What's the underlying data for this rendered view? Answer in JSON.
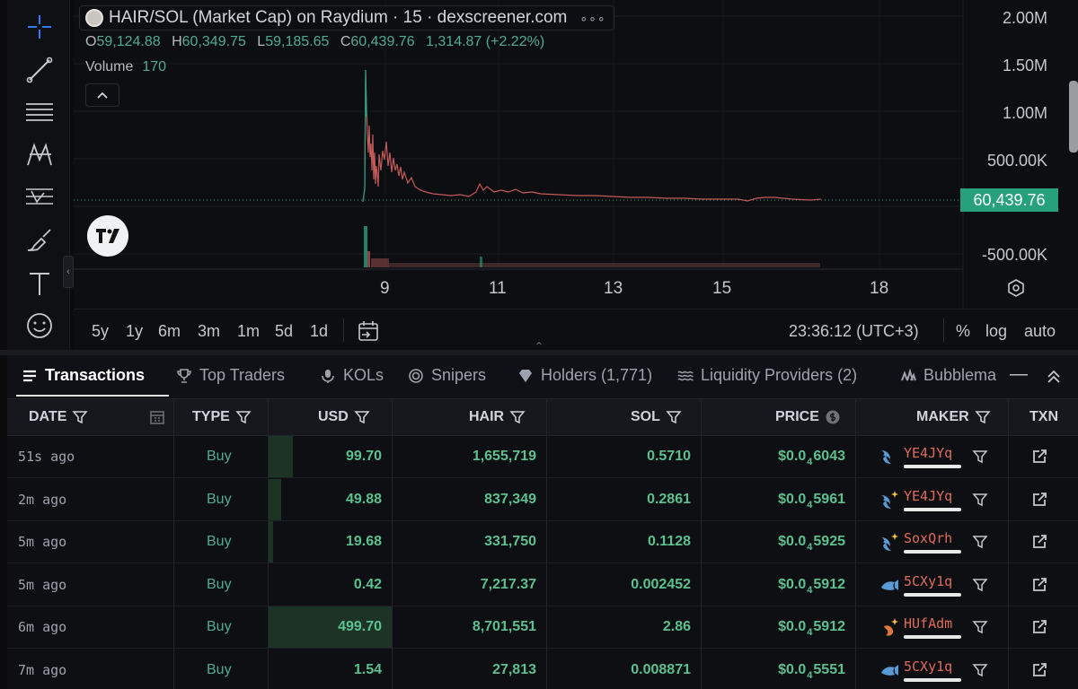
{
  "chart": {
    "pair_title": "HAIR/SOL (Market Cap) on Raydium · 15 · dexscreener.com",
    "more": "∘∘∘",
    "ohlc": {
      "o_label": "O",
      "o": "59,124.88",
      "h_label": "H",
      "h": "60,349.75",
      "l_label": "L",
      "l": "59,185.65",
      "c_label": "C",
      "c": "60,439.76",
      "change": "1,314.87 (+2.22%)"
    },
    "volume_label": "Volume",
    "volume_value": "170",
    "price_axis": [
      "2.00M",
      "1.50M",
      "1.00M",
      "500.00K",
      "-500.00K"
    ],
    "last_price": "60,439.76",
    "time_axis": [
      "9",
      "11",
      "13",
      "15",
      "18"
    ],
    "ranges": [
      "5y",
      "1y",
      "6m",
      "3m",
      "1m",
      "5d",
      "1d"
    ],
    "clock": "23:36:12 (UTC+3)",
    "percent": "%",
    "log": "log",
    "auto": "auto",
    "line_color": "#26a17b"
  },
  "tabs": [
    {
      "label": "Transactions",
      "icon": "list-icon"
    },
    {
      "label": "Top Traders",
      "icon": "trophy-icon"
    },
    {
      "label": "KOLs",
      "icon": "microphone-icon"
    },
    {
      "label": "Snipers",
      "icon": "target-icon"
    },
    {
      "label": "Holders (1,771)",
      "icon": "diamond-icon"
    },
    {
      "label": "Liquidity Providers (2)",
      "icon": "waves-icon"
    },
    {
      "label": "Bubblemaps",
      "icon": "bubblemaps-icon"
    }
  ],
  "table": {
    "headers": [
      "DATE",
      "TYPE",
      "USD",
      "HAIR",
      "SOL",
      "PRICE",
      "MAKER",
      "TXN"
    ],
    "rows": [
      {
        "date": "51s ago",
        "type": "Buy",
        "usd": "99.70",
        "usd_share": 0.2,
        "hair": "1,655,719",
        "sol": "0.5710",
        "price_prefix": "$0.0",
        "price_zeros": "4",
        "price_digits": "6043",
        "maker": "YE4JYq",
        "maker_icon": "dolphin-icon"
      },
      {
        "date": "2m ago",
        "type": "Buy",
        "usd": "49.88",
        "usd_share": 0.1,
        "hair": "837,349",
        "sol": "0.2861",
        "price_prefix": "$0.0",
        "price_zeros": "4",
        "price_digits": "5961",
        "maker": "YE4JYq",
        "maker_icon": "dolphin-sparkle-icon"
      },
      {
        "date": "5m ago",
        "type": "Buy",
        "usd": "19.68",
        "usd_share": 0.04,
        "hair": "331,750",
        "sol": "0.1128",
        "price_prefix": "$0.0",
        "price_zeros": "4",
        "price_digits": "5925",
        "maker": "SoxQrh",
        "maker_icon": "dolphin-sparkle-icon"
      },
      {
        "date": "5m ago",
        "type": "Buy",
        "usd": "0.42",
        "usd_share": 0.0,
        "hair": "7,217.37",
        "sol": "0.002452",
        "price_prefix": "$0.0",
        "price_zeros": "4",
        "price_digits": "5912",
        "maker": "5CXy1q",
        "maker_icon": "fish-icon"
      },
      {
        "date": "6m ago",
        "type": "Buy",
        "usd": "499.70",
        "usd_share": 1.0,
        "hair": "8,701,551",
        "sol": "2.86",
        "price_prefix": "$0.0",
        "price_zeros": "4",
        "price_digits": "5912",
        "maker": "HUfAdm",
        "maker_icon": "shrimp-sparkle-icon"
      },
      {
        "date": "7m ago",
        "type": "Buy",
        "usd": "1.54",
        "usd_share": 0.0,
        "hair": "27,813",
        "sol": "0.008871",
        "price_prefix": "$0.0",
        "price_zeros": "4",
        "price_digits": "5551",
        "maker": "5CXy1q",
        "maker_icon": "fish-icon"
      }
    ]
  }
}
